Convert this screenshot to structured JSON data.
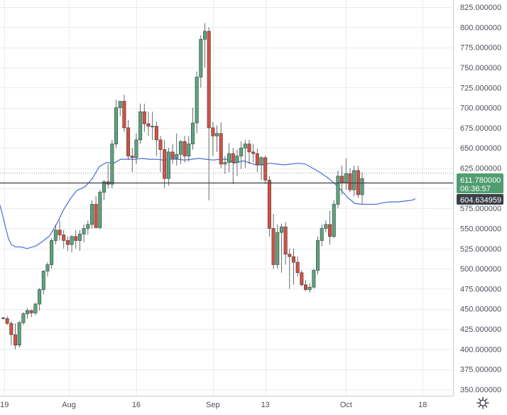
{
  "colors": {
    "up": "#5aa47d",
    "down": "#d4503f",
    "ma": "#4a6ed6",
    "grid": "#e9ecef",
    "axis_text": "#4b4f5a",
    "price_line": "#3b3f46",
    "last_badge": "#4f9e70",
    "ma_badge": "#3b3f46"
  },
  "chart_data": {
    "type": "candlestick",
    "ylim": [
      340,
      830
    ],
    "y_ticks": [
      "825.000000",
      "800.000000",
      "775.000000",
      "750.000000",
      "725.000000",
      "700.000000",
      "675.000000",
      "650.000000",
      "625.000000",
      "600.000000",
      "575.000000",
      "550.000000",
      "525.000000",
      "500.000000",
      "475.000000",
      "450.000000",
      "425.000000",
      "400.000000",
      "375.000000",
      "350.000000"
    ],
    "y_tick_values": [
      825,
      800,
      775,
      750,
      725,
      700,
      675,
      650,
      625,
      600,
      575,
      550,
      525,
      500,
      475,
      450,
      425,
      400,
      375,
      350
    ],
    "x_ticks": [
      "19",
      "Aug",
      "16",
      "Sep",
      "13",
      "Oct",
      "18"
    ],
    "x_tick_index": [
      0.3,
      16.3,
      33,
      52,
      65,
      85,
      104
    ],
    "candles": [
      [
        438,
        440,
        437,
        439
      ],
      [
        438,
        441,
        430,
        432
      ],
      [
        432,
        435,
        405,
        418
      ],
      [
        418,
        432,
        400,
        405
      ],
      [
        405,
        435,
        402,
        433
      ],
      [
        433,
        446,
        430,
        444
      ],
      [
        444,
        451,
        438,
        448
      ],
      [
        448,
        449,
        440,
        445
      ],
      [
        445,
        458,
        442,
        456
      ],
      [
        456,
        476,
        448,
        474
      ],
      [
        474,
        498,
        468,
        497
      ],
      [
        497,
        508,
        490,
        505
      ],
      [
        505,
        538,
        500,
        535
      ],
      [
        535,
        555,
        530,
        548
      ],
      [
        548,
        560,
        535,
        542
      ],
      [
        542,
        548,
        525,
        535
      ],
      [
        535,
        540,
        522,
        530
      ],
      [
        530,
        542,
        520,
        540
      ],
      [
        540,
        548,
        525,
        535
      ],
      [
        535,
        548,
        522,
        543
      ],
      [
        543,
        555,
        533,
        550
      ],
      [
        550,
        560,
        542,
        555
      ],
      [
        555,
        585,
        550,
        580
      ],
      [
        580,
        590,
        550,
        551
      ],
      [
        551,
        598,
        549,
        595
      ],
      [
        595,
        610,
        585,
        608
      ],
      [
        608,
        630,
        600,
        605
      ],
      [
        605,
        660,
        600,
        655
      ],
      [
        655,
        710,
        650,
        700
      ],
      [
        700,
        708,
        690,
        708
      ],
      [
        708,
        716,
        670,
        675
      ],
      [
        675,
        685,
        635,
        640
      ],
      [
        640,
        650,
        620,
        638
      ],
      [
        638,
        668,
        630,
        660
      ],
      [
        660,
        705,
        655,
        695
      ],
      [
        695,
        705,
        670,
        680
      ],
      [
        680,
        695,
        665,
        677
      ],
      [
        677,
        695,
        660,
        677
      ],
      [
        677,
        683,
        640,
        660
      ],
      [
        660,
        665,
        620,
        648
      ],
      [
        648,
        660,
        600,
        612
      ],
      [
        612,
        650,
        603,
        645
      ],
      [
        645,
        655,
        630,
        637
      ],
      [
        637,
        668,
        628,
        642
      ],
      [
        642,
        660,
        630,
        658
      ],
      [
        658,
        665,
        632,
        640
      ],
      [
        640,
        665,
        633,
        655
      ],
      [
        655,
        700,
        648,
        681
      ],
      [
        681,
        745,
        668,
        738
      ],
      [
        738,
        790,
        725,
        785
      ],
      [
        785,
        805,
        750,
        795
      ],
      [
        795,
        800,
        585,
        675
      ],
      [
        675,
        682,
        640,
        665
      ],
      [
        665,
        678,
        645,
        668
      ],
      [
        668,
        682,
        625,
        630
      ],
      [
        630,
        640,
        618,
        632
      ],
      [
        632,
        656,
        620,
        643
      ],
      [
        643,
        650,
        605,
        632
      ],
      [
        632,
        648,
        615,
        640
      ],
      [
        640,
        658,
        624,
        650
      ],
      [
        650,
        660,
        625,
        655
      ],
      [
        655,
        660,
        630,
        645
      ],
      [
        645,
        655,
        632,
        643
      ],
      [
        643,
        649,
        620,
        629
      ],
      [
        629,
        640,
        610,
        638
      ],
      [
        638,
        640,
        605,
        610
      ],
      [
        610,
        615,
        540,
        550
      ],
      [
        550,
        568,
        500,
        505
      ],
      [
        505,
        555,
        500,
        545
      ],
      [
        545,
        556,
        495,
        552
      ],
      [
        552,
        558,
        505,
        518
      ],
      [
        518,
        525,
        475,
        515
      ],
      [
        515,
        525,
        480,
        508
      ],
      [
        508,
        515,
        490,
        495
      ],
      [
        495,
        498,
        478,
        480
      ],
      [
        480,
        486,
        472,
        474
      ],
      [
        474,
        482,
        470,
        477
      ],
      [
        477,
        500,
        475,
        498
      ],
      [
        498,
        540,
        493,
        535
      ],
      [
        535,
        555,
        528,
        550
      ],
      [
        550,
        560,
        545,
        555
      ],
      [
        555,
        572,
        530,
        540
      ],
      [
        540,
        585,
        538,
        580
      ],
      [
        580,
        622,
        575,
        615
      ],
      [
        615,
        628,
        592,
        607
      ],
      [
        607,
        637,
        598,
        618
      ],
      [
        618,
        625,
        595,
        598
      ],
      [
        598,
        628,
        590,
        622
      ],
      [
        622,
        628,
        588,
        592
      ],
      [
        592,
        620,
        580,
        612
      ]
    ],
    "ma": [
      [
        0,
        579
      ],
      [
        6,
        558
      ],
      [
        12,
        537
      ],
      [
        16,
        530
      ],
      [
        22,
        527
      ],
      [
        30,
        527
      ],
      [
        38,
        525
      ],
      [
        50,
        528
      ],
      [
        60,
        534
      ],
      [
        70,
        541
      ],
      [
        80,
        556
      ],
      [
        90,
        574
      ],
      [
        100,
        588
      ],
      [
        108,
        597
      ],
      [
        120,
        602
      ],
      [
        130,
        612
      ],
      [
        140,
        627
      ],
      [
        150,
        632
      ],
      [
        160,
        631
      ],
      [
        170,
        636
      ],
      [
        180,
        636
      ],
      [
        190,
        636
      ],
      [
        200,
        637
      ],
      [
        210,
        636
      ],
      [
        220,
        636
      ],
      [
        230,
        635
      ],
      [
        240,
        636
      ],
      [
        250,
        636
      ],
      [
        260,
        635
      ],
      [
        270,
        636
      ],
      [
        280,
        637
      ],
      [
        290,
        636
      ],
      [
        300,
        635
      ],
      [
        310,
        636
      ],
      [
        320,
        636
      ],
      [
        330,
        631
      ],
      [
        342,
        634
      ],
      [
        350,
        632
      ],
      [
        360,
        629
      ],
      [
        370,
        629
      ],
      [
        380,
        631
      ],
      [
        390,
        630
      ],
      [
        400,
        629
      ],
      [
        410,
        630
      ],
      [
        420,
        631
      ],
      [
        430,
        630
      ],
      [
        440,
        625
      ],
      [
        450,
        620
      ],
      [
        460,
        614
      ],
      [
        470,
        607
      ],
      [
        480,
        598
      ],
      [
        490,
        588
      ],
      [
        500,
        581
      ],
      [
        510,
        580
      ],
      [
        520,
        580
      ],
      [
        530,
        580
      ],
      [
        540,
        582
      ],
      [
        550,
        583
      ],
      [
        560,
        583
      ],
      [
        570,
        584
      ],
      [
        580,
        585
      ],
      [
        585,
        587
      ]
    ],
    "last_price": 611.78,
    "ma_value": 604.634959,
    "current_line": 606.6,
    "dotted_line": 618.9
  },
  "price_axis": {
    "last_price_label": "611.780000",
    "countdown_label": "06:36:57",
    "ma_label": "604.634959"
  },
  "settings_icon": "gear-icon"
}
